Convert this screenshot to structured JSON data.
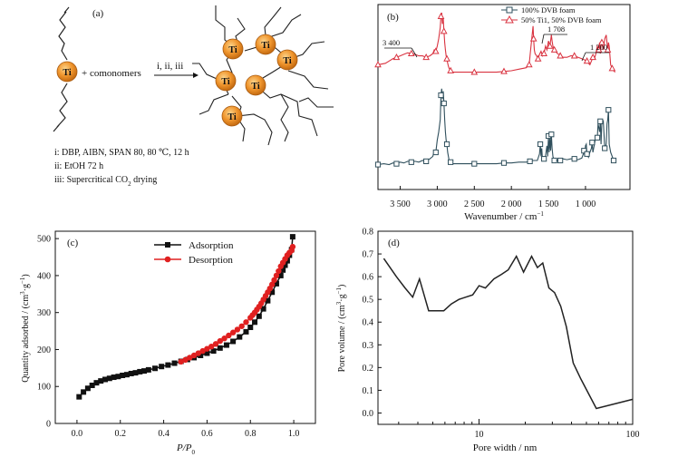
{
  "panel_a": {
    "label": "(a)",
    "ti_label": "Ti",
    "plus_text": "+ comonomers",
    "arrow_text": "i, ii, iii",
    "conditions": [
      "i: DBP, AIBN, SPAN 80, 80 ℃, 12 h",
      "ii: EtOH 72 h"
    ],
    "condition_iii_prefix": "iii: Supercritical CO",
    "condition_iii_sub": "2",
    "condition_iii_suffix": " drying"
  },
  "chart_data": [
    {
      "panel": "(b)",
      "type": "line",
      "xlabel": "Wavenumber / cm",
      "xlabel_sup": "−1",
      "xlim": [
        3800,
        400
      ],
      "x_ticks": [
        3500,
        3000,
        2500,
        2000,
        1500,
        1000
      ],
      "x_tick_labels": [
        "3 500",
        "3 000",
        "2 500",
        "2 000",
        "1 500",
        "1 000"
      ],
      "legend": "top-right",
      "annotations": [
        "3 400",
        "1 708",
        "1 200"
      ],
      "series": [
        {
          "name": "100% DVB foam",
          "color": "#2f4f5c",
          "marker": "square",
          "x": [
            3800,
            3720,
            3650,
            3600,
            3550,
            3500,
            3450,
            3400,
            3350,
            3300,
            3250,
            3200,
            3150,
            3100,
            3060,
            3040,
            3020,
            3000,
            2980,
            2960,
            2950,
            2940,
            2930,
            2920,
            2910,
            2900,
            2890,
            2880,
            2870,
            2860,
            2850,
            2840,
            2820,
            2800,
            2700,
            2600,
            2500,
            2400,
            2300,
            2200,
            2100,
            2000,
            1900,
            1800,
            1750,
            1700,
            1650,
            1620,
            1610,
            1600,
            1590,
            1580,
            1560,
            1540,
            1520,
            1510,
            1500,
            1490,
            1480,
            1470,
            1460,
            1450,
            1440,
            1430,
            1420,
            1400,
            1380,
            1360,
            1340,
            1300,
            1250,
            1200,
            1150,
            1100,
            1050,
            1030,
            1020,
            1010,
            1000,
            990,
            980,
            960,
            940,
            920,
            910,
            900,
            880,
            860,
            840,
            830,
            820,
            810,
            800,
            790,
            780,
            760,
            740,
            720,
            710,
            700,
            690,
            680,
            660,
            640,
            620,
            600
          ],
          "y": [
            0.05,
            0.06,
            0.05,
            0.07,
            0.06,
            0.08,
            0.07,
            0.09,
            0.08,
            0.09,
            0.08,
            0.1,
            0.09,
            0.12,
            0.15,
            0.22,
            0.2,
            0.35,
            0.45,
            0.6,
            0.9,
            0.98,
            0.85,
            0.95,
            0.8,
            0.6,
            0.45,
            0.35,
            0.3,
            0.2,
            0.15,
            0.1,
            0.08,
            0.06,
            0.06,
            0.06,
            0.06,
            0.06,
            0.06,
            0.06,
            0.07,
            0.07,
            0.08,
            0.08,
            0.09,
            0.1,
            0.1,
            0.18,
            0.3,
            0.15,
            0.25,
            0.1,
            0.12,
            0.15,
            0.28,
            0.15,
            0.4,
            0.2,
            0.38,
            0.22,
            0.42,
            0.25,
            0.15,
            0.12,
            0.1,
            0.12,
            0.1,
            0.11,
            0.1,
            0.12,
            0.11,
            0.12,
            0.12,
            0.11,
            0.13,
            0.18,
            0.22,
            0.15,
            0.28,
            0.3,
            0.18,
            0.14,
            0.2,
            0.25,
            0.32,
            0.2,
            0.3,
            0.4,
            0.38,
            0.55,
            0.5,
            0.45,
            0.58,
            0.3,
            0.55,
            0.58,
            0.25,
            0.3,
            0.55,
            0.6,
            0.72,
            0.3,
            0.2,
            0.15,
            0.1,
            0.08
          ]
        },
        {
          "name": "50% Ti1, 50% DVB foam",
          "color": "#d93340",
          "marker": "triangle",
          "x": [
            3800,
            3700,
            3650,
            3600,
            3550,
            3500,
            3450,
            3400,
            3350,
            3300,
            3250,
            3200,
            3150,
            3100,
            3060,
            3040,
            3020,
            3000,
            2980,
            2960,
            2950,
            2940,
            2930,
            2920,
            2910,
            2900,
            2890,
            2880,
            2870,
            2860,
            2850,
            2840,
            2820,
            2800,
            2700,
            2600,
            2500,
            2400,
            2300,
            2200,
            2100,
            2000,
            1900,
            1800,
            1760,
            1740,
            1720,
            1708,
            1700,
            1690,
            1680,
            1660,
            1640,
            1620,
            1600,
            1580,
            1560,
            1540,
            1520,
            1500,
            1480,
            1460,
            1450,
            1440,
            1420,
            1400,
            1380,
            1360,
            1340,
            1300,
            1250,
            1200,
            1150,
            1100,
            1050,
            1000,
            980,
            960,
            940,
            920,
            900,
            880,
            860,
            840,
            820,
            810,
            800,
            790,
            780,
            760,
            740,
            720,
            700,
            690,
            680,
            660,
            640,
            620,
            600
          ],
          "y": [
            0.3,
            0.32,
            0.35,
            0.38,
            0.4,
            0.42,
            0.44,
            0.46,
            0.45,
            0.44,
            0.42,
            0.42,
            0.4,
            0.42,
            0.45,
            0.5,
            0.48,
            0.55,
            0.65,
            0.8,
            0.95,
            1.0,
            0.85,
            0.92,
            0.75,
            0.6,
            0.5,
            0.42,
            0.38,
            0.32,
            0.28,
            0.25,
            0.22,
            0.2,
            0.2,
            0.2,
            0.2,
            0.2,
            0.2,
            0.2,
            0.21,
            0.22,
            0.24,
            0.26,
            0.3,
            0.5,
            0.7,
            0.82,
            0.65,
            0.5,
            0.45,
            0.42,
            0.38,
            0.44,
            0.48,
            0.42,
            0.45,
            0.55,
            0.5,
            0.62,
            0.55,
            0.7,
            0.62,
            0.55,
            0.5,
            0.48,
            0.45,
            0.44,
            0.42,
            0.4,
            0.4,
            0.42,
            0.42,
            0.4,
            0.38,
            0.36,
            0.35,
            0.32,
            0.3,
            0.35,
            0.4,
            0.38,
            0.45,
            0.55,
            0.5,
            0.6,
            0.45,
            0.55,
            0.6,
            0.5,
            0.65,
            0.7,
            0.5,
            0.6,
            0.55,
            0.3,
            0.25,
            0.22,
            0.2
          ]
        }
      ]
    },
    {
      "panel": "(c)",
      "type": "line",
      "xlabel_main": "P/P",
      "xlabel_sub": "0",
      "ylabel": "Quantity adsorbed / (cm",
      "ylabel_sup1": "3",
      "ylabel_mid": "·g",
      "ylabel_sup2": "−1",
      "ylabel_end": ")",
      "xlim": [
        -0.1,
        1.1
      ],
      "ylim": [
        0,
        520
      ],
      "x_ticks": [
        0.0,
        0.2,
        0.4,
        0.6,
        0.8,
        1.0
      ],
      "x_tick_labels": [
        "0.0",
        "0.2",
        "0.4",
        "0.6",
        "0.8",
        "1.0"
      ],
      "y_ticks": [
        0,
        100,
        200,
        300,
        400,
        500
      ],
      "y_tick_labels": [
        "0",
        "100",
        "200",
        "300",
        "400",
        "500"
      ],
      "legend": "top-left",
      "series": [
        {
          "name": "Adsorption",
          "color": "#111111",
          "marker": "square",
          "x": [
            0.01,
            0.03,
            0.05,
            0.07,
            0.09,
            0.11,
            0.13,
            0.15,
            0.17,
            0.19,
            0.21,
            0.23,
            0.25,
            0.27,
            0.29,
            0.31,
            0.33,
            0.36,
            0.39,
            0.42,
            0.45,
            0.48,
            0.51,
            0.54,
            0.57,
            0.6,
            0.63,
            0.66,
            0.69,
            0.72,
            0.75,
            0.78,
            0.8,
            0.82,
            0.84,
            0.86,
            0.88,
            0.9,
            0.92,
            0.94,
            0.95,
            0.96,
            0.97,
            0.98,
            0.99,
            0.995
          ],
          "y": [
            72,
            85,
            95,
            103,
            110,
            115,
            119,
            122,
            125,
            127,
            130,
            132,
            135,
            137,
            140,
            142,
            145,
            149,
            154,
            158,
            163,
            168,
            173,
            178,
            184,
            190,
            196,
            204,
            212,
            222,
            234,
            248,
            260,
            274,
            290,
            310,
            332,
            355,
            378,
            400,
            415,
            428,
            440,
            455,
            470,
            505
          ]
        },
        {
          "name": "Desorption",
          "color": "#e02020",
          "marker": "circle",
          "x": [
            0.995,
            0.99,
            0.98,
            0.97,
            0.96,
            0.95,
            0.94,
            0.93,
            0.92,
            0.91,
            0.9,
            0.89,
            0.88,
            0.87,
            0.86,
            0.85,
            0.84,
            0.83,
            0.82,
            0.81,
            0.8,
            0.78,
            0.76,
            0.74,
            0.72,
            0.7,
            0.68,
            0.66,
            0.64,
            0.62,
            0.6,
            0.58,
            0.56,
            0.54,
            0.52,
            0.5,
            0.48
          ],
          "y": [
            478,
            468,
            462,
            455,
            445,
            435,
            425,
            412,
            400,
            388,
            376,
            365,
            355,
            345,
            335,
            325,
            316,
            308,
            300,
            293,
            286,
            274,
            263,
            254,
            246,
            238,
            230,
            223,
            215,
            208,
            202,
            196,
            190,
            184,
            178,
            172,
            167
          ]
        }
      ]
    },
    {
      "panel": "(d)",
      "type": "line",
      "xlabel": "Pore width / nm",
      "ylabel": "Pore volume / (cm",
      "ylabel_sup1": "3",
      "ylabel_mid": "·g",
      "ylabel_sup2": "−1",
      "ylabel_end": ")",
      "xscale": "log",
      "xlim": [
        2.2,
        100
      ],
      "ylim": [
        -0.05,
        0.8
      ],
      "x_ticks": [
        10,
        100
      ],
      "x_tick_labels": [
        "10",
        "100"
      ],
      "y_ticks": [
        0.0,
        0.1,
        0.2,
        0.3,
        0.4,
        0.5,
        0.6,
        0.7,
        0.8
      ],
      "y_tick_labels": [
        "0.0",
        "0.1",
        "0.2",
        "0.3",
        "0.4",
        "0.5",
        "0.6",
        "0.7",
        "0.8"
      ],
      "series": [
        {
          "color": "#222222",
          "x": [
            2.4,
            2.9,
            3.3,
            3.7,
            4.1,
            4.7,
            5.3,
            5.9,
            6.6,
            7.4,
            8.2,
            9.1,
            10,
            11,
            12.5,
            14,
            15.5,
            17.5,
            19.5,
            22,
            24,
            26,
            28.5,
            31,
            34,
            37,
            41,
            46,
            58,
            100
          ],
          "y": [
            0.68,
            0.6,
            0.55,
            0.51,
            0.59,
            0.45,
            0.45,
            0.45,
            0.48,
            0.5,
            0.51,
            0.52,
            0.56,
            0.55,
            0.59,
            0.61,
            0.63,
            0.69,
            0.62,
            0.69,
            0.64,
            0.66,
            0.55,
            0.53,
            0.47,
            0.38,
            0.22,
            0.15,
            0.02,
            0.06
          ]
        }
      ]
    }
  ]
}
